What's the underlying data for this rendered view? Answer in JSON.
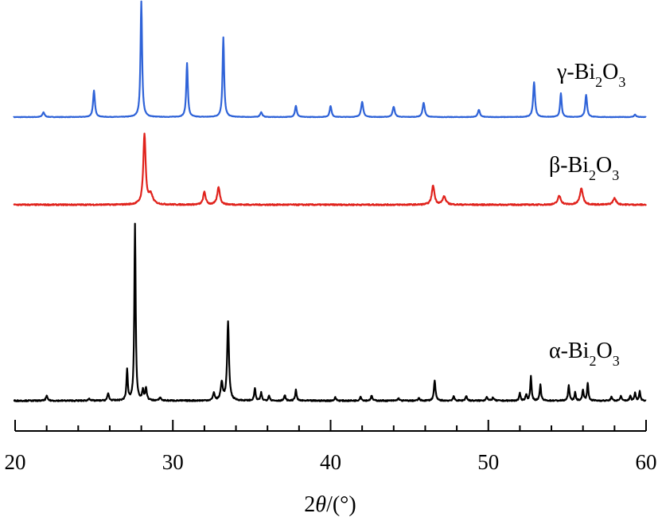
{
  "chart_data": {
    "type": "line",
    "title": "",
    "xlabel_parts": [
      "2",
      "θ",
      "/(°)"
    ],
    "ylabel": "",
    "xlim": [
      20,
      60
    ],
    "x_ticks": [
      20,
      30,
      40,
      50,
      60
    ],
    "grid": false,
    "legend": "none",
    "series": [
      {
        "label_parts": [
          "γ-Bi",
          "2",
          "O",
          "3"
        ],
        "color": "#2f63d8",
        "baseline": 0.0,
        "peaks": [
          {
            "x": 21.8,
            "h": 6,
            "w": 0.08
          },
          {
            "x": 25.0,
            "h": 33,
            "w": 0.07
          },
          {
            "x": 28.0,
            "h": 145,
            "w": 0.06
          },
          {
            "x": 30.9,
            "h": 68,
            "w": 0.06
          },
          {
            "x": 33.2,
            "h": 100,
            "w": 0.06
          },
          {
            "x": 35.6,
            "h": 6,
            "w": 0.08
          },
          {
            "x": 37.8,
            "h": 14,
            "w": 0.07
          },
          {
            "x": 40.0,
            "h": 14,
            "w": 0.07
          },
          {
            "x": 42.0,
            "h": 19,
            "w": 0.08
          },
          {
            "x": 44.0,
            "h": 13,
            "w": 0.08
          },
          {
            "x": 45.9,
            "h": 18,
            "w": 0.08
          },
          {
            "x": 49.4,
            "h": 9,
            "w": 0.08
          },
          {
            "x": 52.9,
            "h": 44,
            "w": 0.07
          },
          {
            "x": 54.6,
            "h": 30,
            "w": 0.06
          },
          {
            "x": 56.2,
            "h": 28,
            "w": 0.07
          },
          {
            "x": 59.3,
            "h": 3,
            "w": 0.08
          }
        ]
      },
      {
        "label_parts": [
          "β-Bi",
          "2",
          "O",
          "3"
        ],
        "color": "#e0221c",
        "baseline": 0.0,
        "peaks": [
          {
            "x": 28.2,
            "h": 88,
            "w": 0.09
          },
          {
            "x": 28.6,
            "h": 12,
            "w": 0.15
          },
          {
            "x": 32.0,
            "h": 16,
            "w": 0.09
          },
          {
            "x": 32.9,
            "h": 22,
            "w": 0.1
          },
          {
            "x": 46.5,
            "h": 24,
            "w": 0.1
          },
          {
            "x": 47.2,
            "h": 10,
            "w": 0.12
          },
          {
            "x": 54.5,
            "h": 11,
            "w": 0.12
          },
          {
            "x": 55.9,
            "h": 20,
            "w": 0.12
          },
          {
            "x": 58.0,
            "h": 8,
            "w": 0.12
          }
        ]
      },
      {
        "label_parts": [
          "α-Bi",
          "2",
          "O",
          "3"
        ],
        "color": "#000000",
        "baseline": 0.0,
        "peaks": [
          {
            "x": 22.0,
            "h": 6,
            "w": 0.06
          },
          {
            "x": 24.7,
            "h": 3,
            "w": 0.06
          },
          {
            "x": 25.9,
            "h": 9,
            "w": 0.06
          },
          {
            "x": 27.1,
            "h": 38,
            "w": 0.05
          },
          {
            "x": 27.6,
            "h": 222,
            "w": 0.05
          },
          {
            "x": 28.1,
            "h": 12,
            "w": 0.06
          },
          {
            "x": 28.3,
            "h": 15,
            "w": 0.06
          },
          {
            "x": 29.2,
            "h": 4,
            "w": 0.06
          },
          {
            "x": 32.6,
            "h": 10,
            "w": 0.06
          },
          {
            "x": 33.1,
            "h": 22,
            "w": 0.08
          },
          {
            "x": 33.5,
            "h": 98,
            "w": 0.07
          },
          {
            "x": 35.2,
            "h": 16,
            "w": 0.05
          },
          {
            "x": 35.6,
            "h": 10,
            "w": 0.05
          },
          {
            "x": 36.1,
            "h": 7,
            "w": 0.05
          },
          {
            "x": 37.1,
            "h": 7,
            "w": 0.05
          },
          {
            "x": 37.8,
            "h": 14,
            "w": 0.05
          },
          {
            "x": 40.3,
            "h": 4,
            "w": 0.06
          },
          {
            "x": 41.9,
            "h": 5,
            "w": 0.06
          },
          {
            "x": 42.6,
            "h": 6,
            "w": 0.06
          },
          {
            "x": 44.3,
            "h": 3,
            "w": 0.06
          },
          {
            "x": 45.6,
            "h": 3,
            "w": 0.06
          },
          {
            "x": 46.6,
            "h": 25,
            "w": 0.06
          },
          {
            "x": 47.8,
            "h": 5,
            "w": 0.06
          },
          {
            "x": 48.6,
            "h": 6,
            "w": 0.06
          },
          {
            "x": 49.9,
            "h": 5,
            "w": 0.06
          },
          {
            "x": 50.3,
            "h": 4,
            "w": 0.06
          },
          {
            "x": 52.0,
            "h": 9,
            "w": 0.05
          },
          {
            "x": 52.4,
            "h": 8,
            "w": 0.05
          },
          {
            "x": 52.7,
            "h": 30,
            "w": 0.05
          },
          {
            "x": 53.3,
            "h": 20,
            "w": 0.05
          },
          {
            "x": 55.1,
            "h": 20,
            "w": 0.05
          },
          {
            "x": 55.5,
            "h": 10,
            "w": 0.05
          },
          {
            "x": 56.0,
            "h": 14,
            "w": 0.05
          },
          {
            "x": 56.3,
            "h": 22,
            "w": 0.05
          },
          {
            "x": 57.8,
            "h": 5,
            "w": 0.05
          },
          {
            "x": 58.4,
            "h": 6,
            "w": 0.05
          },
          {
            "x": 59.0,
            "h": 6,
            "w": 0.05
          },
          {
            "x": 59.3,
            "h": 10,
            "w": 0.05
          },
          {
            "x": 59.6,
            "h": 12,
            "w": 0.05
          }
        ]
      }
    ]
  }
}
